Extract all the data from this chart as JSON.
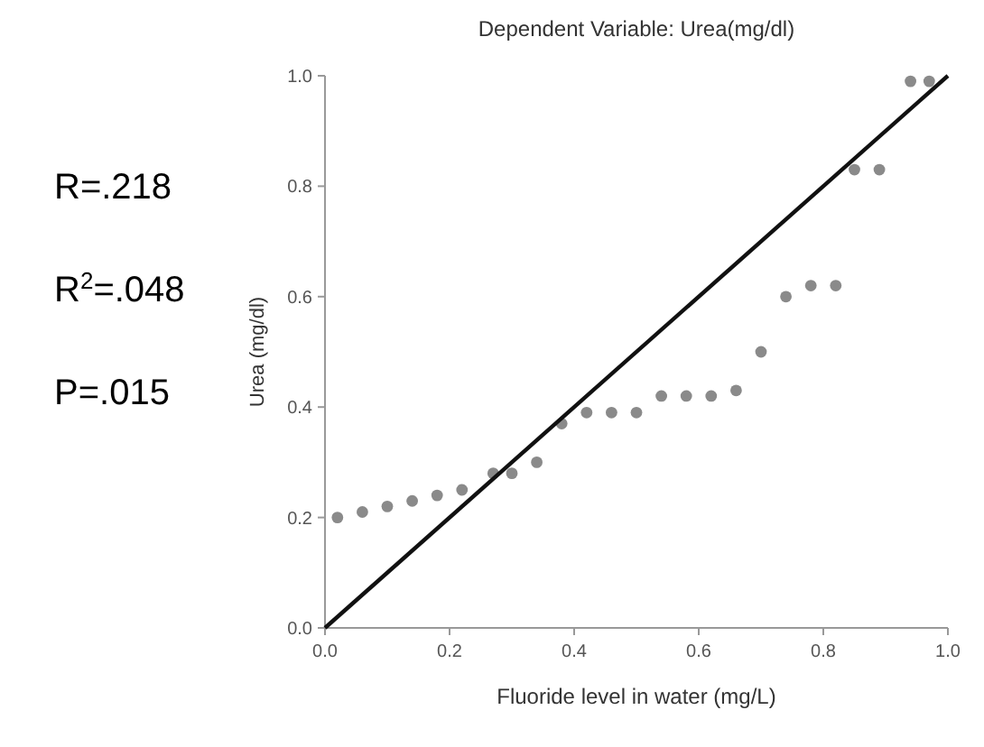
{
  "chart_data": {
    "type": "scatter",
    "title": "Dependent Variable: Urea(mg/dl)",
    "xlabel": "Fluoride level in water (mg/L)",
    "ylabel": "Urea (mg/dl)",
    "xlim": [
      0,
      1
    ],
    "ylim": [
      0,
      1
    ],
    "xticks": [
      {
        "value": 0,
        "label": "0.0"
      },
      0.2,
      0.4,
      0.6,
      0.8,
      {
        "value": 1,
        "label": "1.0"
      }
    ],
    "yticks": [
      {
        "value": 0,
        "label": "0.0"
      },
      0.2,
      0.4,
      0.6,
      0.8,
      {
        "value": 1,
        "label": "1.0"
      }
    ],
    "grid": false,
    "annotations": [
      "R=.218",
      "R$^{2}$=.048",
      "P=.015"
    ],
    "series": [
      {
        "color": "#8a8a8a",
        "marker": "circle",
        "x": [
          0.02,
          0.06,
          0.1,
          0.14,
          0.18,
          0.22,
          0.27,
          0.3,
          0.34,
          0.38,
          0.42,
          0.46,
          0.5,
          0.54,
          0.58,
          0.62,
          0.66,
          0.7,
          0.74,
          0.78,
          0.82,
          0.85,
          0.89,
          0.94,
          0.97
        ],
        "values": [
          0.2,
          0.21,
          0.22,
          0.23,
          0.24,
          0.25,
          0.28,
          0.28,
          0.3,
          0.37,
          0.39,
          0.39,
          0.39,
          0.42,
          0.42,
          0.42,
          0.43,
          0.5,
          0.6,
          0.62,
          0.62,
          0.83,
          0.83,
          0.99,
          0.99
        ]
      },
      {
        "type": "line",
        "color": "#111111",
        "x": [
          0,
          1
        ],
        "values": [
          0,
          1
        ]
      }
    ]
  }
}
